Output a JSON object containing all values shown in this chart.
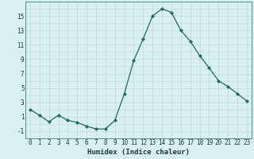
{
  "x": [
    0,
    1,
    2,
    3,
    4,
    5,
    6,
    7,
    8,
    9,
    10,
    11,
    12,
    13,
    14,
    15,
    16,
    17,
    18,
    19,
    20,
    21,
    22,
    23
  ],
  "y": [
    2.0,
    1.2,
    0.3,
    1.2,
    0.5,
    0.2,
    -0.3,
    -0.7,
    -0.7,
    0.5,
    4.2,
    8.8,
    11.8,
    15.0,
    16.0,
    15.5,
    13.0,
    11.5,
    9.5,
    7.8,
    6.0,
    5.2,
    4.2,
    3.2
  ],
  "line_color": "#1a6b5e",
  "marker": "D",
  "marker_size": 2.0,
  "bg_color": "#daf0f0",
  "grid_color_major": "#c0dede",
  "grid_color_minor": "#e8f5f5",
  "xlabel": "Humidex (Indice chaleur)",
  "xlabel_fontsize": 6.5,
  "ytick_labels": [
    "-1",
    "1",
    "3",
    "5",
    "7",
    "9",
    "11",
    "13",
    "15"
  ],
  "ytick_values": [
    -1,
    1,
    3,
    5,
    7,
    9,
    11,
    13,
    15
  ],
  "ylim": [
    -2.0,
    17.0
  ],
  "xlim": [
    -0.5,
    23.5
  ],
  "xtick_labels": [
    "0",
    "1",
    "2",
    "3",
    "4",
    "5",
    "6",
    "7",
    "8",
    "9",
    "10",
    "11",
    "12",
    "13",
    "14",
    "15",
    "16",
    "17",
    "18",
    "19",
    "20",
    "21",
    "22",
    "23"
  ],
  "tick_fontsize": 5.5,
  "line_width": 0.9,
  "spine_color": "#4a9090"
}
